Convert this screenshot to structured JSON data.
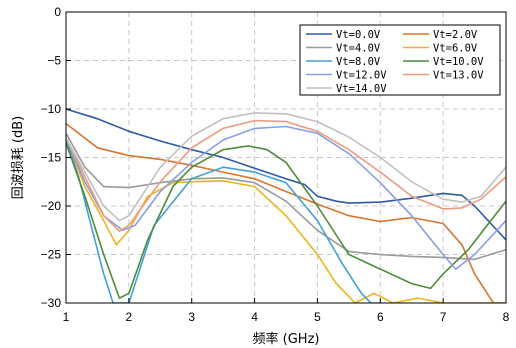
{
  "chart_data": {
    "type": "line",
    "xlabel": "频率 (GHz)",
    "ylabel": "回波损耗 (dB)",
    "xlim": [
      1,
      8
    ],
    "ylim": [
      -30,
      0
    ],
    "x_ticks": [
      "1",
      "2",
      "3",
      "4",
      "5",
      "6",
      "7",
      "8"
    ],
    "y_ticks": [
      "0",
      "−5",
      "−10",
      "−15",
      "−20",
      "−25",
      "−30"
    ],
    "grid": true,
    "legend_position": "top-right",
    "series": [
      {
        "name": "Vt=0.0V",
        "color": "#2e5aa6",
        "x": [
          1,
          1.5,
          2,
          2.5,
          3,
          3.5,
          4,
          4.5,
          4.8,
          5,
          5.3,
          5.5,
          6,
          6.5,
          7,
          7.3,
          7.5,
          8
        ],
        "y": [
          -10,
          -11,
          -12.3,
          -13.3,
          -14.2,
          -15,
          -16.1,
          -17.2,
          -17.8,
          -19,
          -19.5,
          -19.7,
          -19.6,
          -19.2,
          -18.7,
          -18.9,
          -20,
          -23.5
        ]
      },
      {
        "name": "Vt=2.0V",
        "color": "#d8742e",
        "x": [
          1,
          1.5,
          2,
          2.5,
          3,
          3.5,
          4,
          4.5,
          5,
          5.5,
          6,
          6.5,
          7,
          7.3,
          7.5,
          7.8,
          8
        ],
        "y": [
          -11.5,
          -14,
          -14.8,
          -15.2,
          -15.8,
          -16.5,
          -17.2,
          -18.5,
          -19.8,
          -21,
          -21.6,
          -21.2,
          -21.8,
          -24,
          -27,
          -30,
          -30
        ]
      },
      {
        "name": "Vt=4.0V",
        "color": "#9a9a9a",
        "x": [
          1,
          1.3,
          1.6,
          2,
          2.5,
          3,
          3.5,
          4,
          4.5,
          5,
          5.5,
          6,
          6.5,
          7,
          7.5,
          8
        ],
        "y": [
          -12.5,
          -16,
          -18,
          -18.1,
          -17.6,
          -17.2,
          -17.1,
          -17.6,
          -19.5,
          -22.5,
          -24.7,
          -25,
          -25.2,
          -25.3,
          -25.5,
          -24.5
        ]
      },
      {
        "name": "Vt=6.0V",
        "color": "#e8b61c",
        "x": [
          1,
          1.3,
          1.6,
          1.8,
          2,
          2.3,
          2.7,
          3,
          3.5,
          4,
          4.5,
          5,
          5.3,
          5.6,
          5.9,
          6.2,
          6.6,
          7,
          7.5,
          8
        ],
        "y": [
          -13,
          -18,
          -21.5,
          -24,
          -22.5,
          -19,
          -17.6,
          -17.5,
          -17.4,
          -18,
          -21,
          -25,
          -28,
          -30,
          -29,
          -30,
          -29.5,
          -30,
          -30,
          -30
        ]
      },
      {
        "name": "Vt=8.0V",
        "color": "#43a0d9",
        "x": [
          1,
          1.2,
          1.4,
          1.6,
          1.75,
          1.9,
          2,
          2.4,
          3,
          3.5,
          4,
          4.5,
          5,
          5.4,
          5.7,
          5.85,
          6
        ],
        "y": [
          -13,
          -17,
          -22,
          -27,
          -30,
          -30,
          -30,
          -22,
          -17.2,
          -16,
          -16.5,
          -17.6,
          -21.5,
          -26,
          -29,
          -30,
          -30
        ]
      },
      {
        "name": "Vt=10.0V",
        "color": "#4d8c3a",
        "x": [
          1,
          1.3,
          1.6,
          1.85,
          2,
          2.3,
          2.7,
          3,
          3.5,
          3.9,
          4.2,
          4.5,
          5,
          5.5,
          6,
          6.5,
          6.8,
          7,
          7.4,
          7.7,
          8
        ],
        "y": [
          -13.5,
          -19,
          -25,
          -29.5,
          -29,
          -23.5,
          -18,
          -16,
          -14.2,
          -13.8,
          -14.2,
          -15.5,
          -20,
          -25,
          -26.5,
          -28,
          -28.5,
          -27,
          -24.5,
          -22,
          -19.5
        ]
      },
      {
        "name": "Vt=12.0V",
        "color": "#8a9ee8",
        "x": [
          1,
          1.3,
          1.6,
          1.9,
          2.1,
          2.5,
          3,
          3.5,
          4,
          4.5,
          5,
          5.5,
          6,
          6.5,
          7,
          7.2,
          7.5,
          8
        ],
        "y": [
          -13,
          -17.5,
          -21,
          -22.5,
          -22,
          -18.5,
          -15.5,
          -13.2,
          -12,
          -11.8,
          -12.5,
          -14.6,
          -17.6,
          -21,
          -25,
          -26.5,
          -25,
          -21.5
        ]
      },
      {
        "name": "Vt=13.0V",
        "color": "#f09a7d",
        "x": [
          1,
          1.3,
          1.6,
          1.85,
          2,
          2.5,
          3,
          3.5,
          4,
          4.5,
          5,
          5.5,
          6,
          6.5,
          7,
          7.3,
          7.6,
          8
        ],
        "y": [
          -13,
          -17,
          -21,
          -22.6,
          -22,
          -17.5,
          -14,
          -12,
          -11.2,
          -11.3,
          -12.3,
          -14.2,
          -16.5,
          -19,
          -20.3,
          -20.2,
          -19.3,
          -17
        ]
      },
      {
        "name": "Vt=14.0V",
        "color": "#c0c0c0",
        "x": [
          1,
          1.3,
          1.6,
          1.85,
          2,
          2.5,
          3,
          3.5,
          4,
          4.5,
          5,
          5.5,
          6,
          6.5,
          7,
          7.3,
          7.6,
          8
        ],
        "y": [
          -13,
          -16.5,
          -20,
          -21.5,
          -21,
          -16,
          -12.8,
          -11,
          -10.4,
          -10.5,
          -11.3,
          -12.9,
          -15,
          -17.5,
          -19.3,
          -19.6,
          -19,
          -16
        ]
      }
    ]
  }
}
